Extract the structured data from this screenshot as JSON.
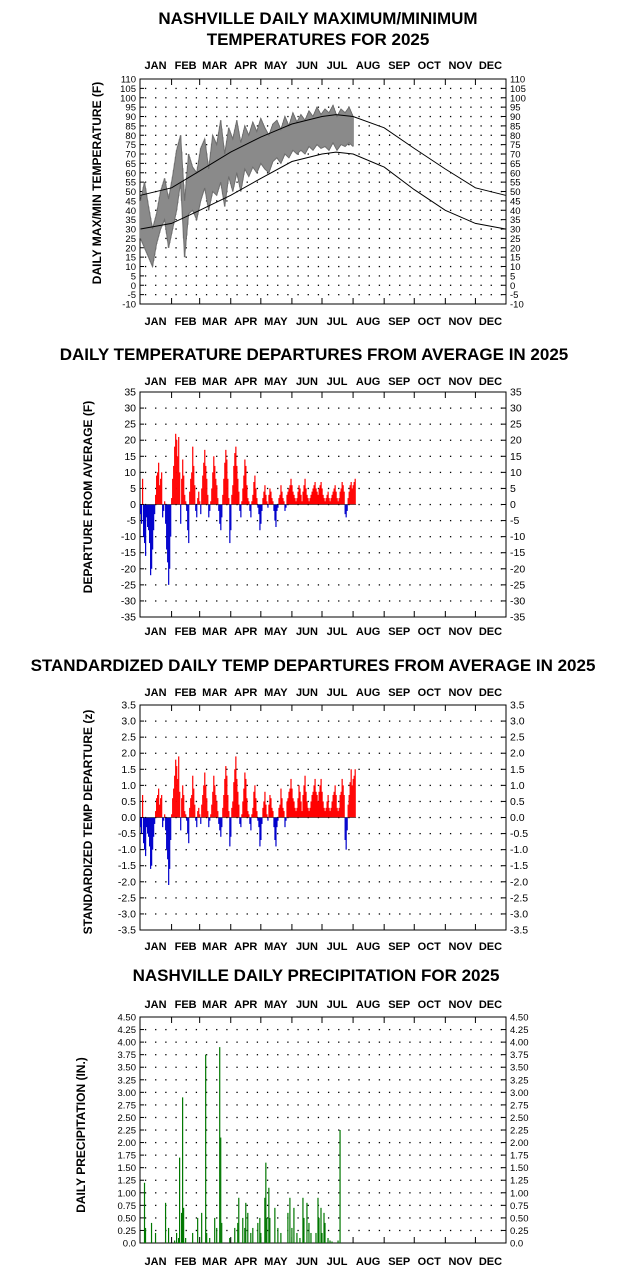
{
  "months": [
    "JAN",
    "FEB",
    "MAR",
    "APR",
    "MAY",
    "JUN",
    "JUL",
    "AUG",
    "SEP",
    "OCT",
    "NOV",
    "DEC"
  ],
  "colors": {
    "observed": "#8a8a8a",
    "normal": "#000000",
    "above": "#ff0000",
    "below": "#0000cc",
    "precip": "#007700"
  },
  "chart_data": [
    {
      "id": "maxmin",
      "type": "line",
      "title_line1": "NASHVILLE DAILY MAXIMUM/MINIMUM",
      "title_line2": "TEMPERATURES FOR 2025",
      "ylabel": "DAILY MAX/MIN TEMPERATURE (F)",
      "ylim": [
        -10,
        110
      ],
      "yticks": [
        -10,
        -5,
        0,
        5,
        10,
        15,
        20,
        25,
        30,
        35,
        40,
        45,
        50,
        55,
        60,
        65,
        70,
        75,
        80,
        85,
        90,
        95,
        100,
        105,
        110
      ],
      "grid": true,
      "series": [
        {
          "name": "",
          "kind": "normal_high",
          "x": [
            1,
            32,
            60,
            91,
            121,
            152,
            182,
            196,
            213,
            244,
            274,
            305,
            335,
            365
          ],
          "values": [
            48,
            52,
            61,
            71,
            79,
            86,
            90,
            91,
            90,
            84,
            73,
            62,
            52,
            48
          ]
        },
        {
          "name": "",
          "kind": "normal_low",
          "x": [
            1,
            32,
            60,
            91,
            121,
            152,
            182,
            196,
            213,
            244,
            274,
            305,
            335,
            365
          ],
          "values": [
            30,
            33,
            40,
            48,
            57,
            66,
            70,
            71,
            70,
            63,
            51,
            40,
            33,
            30
          ]
        },
        {
          "name": "",
          "kind": "observed_high",
          "x": [
            1,
            5,
            9,
            13,
            17,
            21,
            25,
            29,
            33,
            37,
            41,
            45,
            49,
            53,
            57,
            61,
            65,
            69,
            73,
            77,
            81,
            85,
            89,
            93,
            97,
            101,
            105,
            109,
            113,
            117,
            121,
            125,
            129,
            133,
            137,
            141,
            145,
            149,
            153,
            157,
            161,
            165,
            169,
            173,
            177,
            181,
            185,
            189,
            193,
            197,
            201,
            205,
            209,
            213
          ],
          "values": [
            45,
            55,
            42,
            30,
            38,
            50,
            57,
            46,
            58,
            72,
            80,
            45,
            70,
            63,
            60,
            73,
            78,
            62,
            80,
            75,
            88,
            70,
            84,
            78,
            88,
            76,
            85,
            80,
            87,
            82,
            89,
            84,
            80,
            86,
            88,
            83,
            90,
            85,
            92,
            87,
            91,
            88,
            93,
            90,
            95,
            91,
            94,
            92,
            96,
            90,
            94,
            92,
            95,
            90
          ]
        },
        {
          "name": "",
          "kind": "observed_low",
          "x": [
            1,
            5,
            9,
            13,
            17,
            21,
            25,
            29,
            33,
            37,
            41,
            45,
            49,
            53,
            57,
            61,
            65,
            69,
            73,
            77,
            81,
            85,
            89,
            93,
            97,
            101,
            105,
            109,
            113,
            117,
            121,
            125,
            129,
            133,
            137,
            141,
            145,
            149,
            153,
            157,
            161,
            165,
            169,
            173,
            177,
            181,
            185,
            189,
            193,
            197,
            201,
            205,
            209,
            213
          ],
          "values": [
            25,
            20,
            15,
            10,
            22,
            30,
            35,
            20,
            30,
            40,
            55,
            15,
            38,
            40,
            35,
            45,
            52,
            40,
            50,
            48,
            55,
            42,
            58,
            50,
            60,
            50,
            62,
            58,
            63,
            60,
            65,
            62,
            60,
            66,
            68,
            65,
            70,
            68,
            72,
            70,
            72,
            70,
            74,
            72,
            75,
            73,
            74,
            72,
            76,
            72,
            75,
            74,
            76,
            74
          ]
        }
      ]
    },
    {
      "id": "departure",
      "type": "bar",
      "title": "DAILY TEMPERATURE DEPARTURES FROM AVERAGE IN 2025",
      "ylabel": "DEPARTURE FROM AVERAGE (F)",
      "ylim": [
        -35,
        35
      ],
      "yticks": [
        -35,
        -30,
        -25,
        -20,
        -15,
        -10,
        -5,
        0,
        5,
        10,
        15,
        20,
        25,
        30,
        35
      ],
      "grid": true,
      "day_start": 1,
      "values": [
        -3,
        -6,
        8,
        -10,
        -12,
        -16,
        -4,
        -7,
        -8,
        -12,
        -22,
        -20,
        -14,
        -8,
        -3,
        3,
        9,
        10,
        13,
        6,
        8,
        10,
        -4,
        -2,
        1,
        -6,
        -14,
        -18,
        -25,
        -20,
        -10,
        2,
        8,
        12,
        18,
        22,
        20,
        15,
        21,
        10,
        -6,
        8,
        14,
        9,
        3,
        1,
        -2,
        -8,
        -12,
        4,
        8,
        10,
        18,
        12,
        6,
        -2,
        -4,
        2,
        4,
        1,
        -3,
        5,
        9,
        13,
        17,
        12,
        8,
        3,
        -4,
        -2,
        1,
        5,
        10,
        15,
        12,
        8,
        6,
        2,
        -2,
        -6,
        -8,
        -4,
        3,
        8,
        13,
        17,
        14,
        8,
        2,
        -12,
        -8,
        3,
        6,
        12,
        16,
        18,
        12,
        8,
        4,
        -2,
        -4,
        1,
        5,
        9,
        14,
        12,
        6,
        2,
        1,
        -2,
        -4,
        1,
        3,
        7,
        9,
        5,
        2,
        -1,
        -3,
        -8,
        -6,
        -2,
        2,
        4,
        6,
        3,
        1,
        -1,
        3,
        5,
        4,
        2,
        1,
        -2,
        -5,
        -7,
        -2,
        -1,
        2,
        3,
        6,
        4,
        2,
        1,
        -2,
        -1,
        3,
        4,
        5,
        6,
        8,
        6,
        4,
        3,
        2,
        1,
        2,
        4,
        6,
        5,
        3,
        1,
        4,
        6,
        8,
        5,
        3,
        2,
        1,
        2,
        3,
        4,
        5,
        6,
        7,
        5,
        4,
        3,
        5,
        6,
        7,
        5,
        3,
        2,
        1,
        2,
        3,
        4,
        2,
        1,
        2,
        3,
        4,
        5,
        6,
        4,
        2,
        1,
        2,
        4,
        5,
        7,
        6,
        4,
        -3,
        -4,
        -2,
        2,
        4,
        6,
        7,
        5,
        6,
        7,
        8
      ]
    },
    {
      "id": "standardized",
      "type": "bar",
      "title": "STANDARDIZED DAILY TEMP DEPARTURES FROM AVERAGE IN 2025",
      "ylabel": "STANDARDIZED TEMP DEPARTURE (z)",
      "ylim": [
        -3.5,
        3.5
      ],
      "yticks": [
        -3.5,
        -3.0,
        -2.5,
        -2.0,
        -1.5,
        -1.0,
        -0.5,
        0.0,
        0.5,
        1.0,
        1.5,
        2.0,
        2.5,
        3.0,
        3.5
      ],
      "ytick_labels": [
        "-3.5",
        "-3.0",
        "-2.5",
        "-2.0",
        "-1.5",
        "-1.0",
        "-0.5",
        "0.0",
        "0.5",
        "1.0",
        "1.5",
        "2.0",
        "2.5",
        "3.0",
        "3.5"
      ],
      "grid": true,
      "day_start": 1,
      "values": [
        -0.3,
        -0.5,
        0.7,
        -0.8,
        -1.0,
        -1.2,
        -0.3,
        -0.5,
        -0.6,
        -0.9,
        -1.6,
        -1.5,
        -1.0,
        -0.6,
        -0.2,
        0.2,
        0.6,
        0.7,
        0.9,
        0.4,
        0.6,
        0.7,
        -0.3,
        -0.1,
        0.1,
        -0.4,
        -1.0,
        -1.3,
        -2.1,
        -1.6,
        -0.7,
        0.1,
        0.6,
        0.9,
        1.3,
        1.8,
        1.6,
        1.2,
        1.9,
        0.8,
        -0.4,
        0.6,
        1.0,
        0.7,
        0.2,
        0.1,
        -0.1,
        -0.5,
        -0.8,
        0.3,
        0.6,
        0.7,
        1.3,
        0.9,
        0.4,
        -0.1,
        -0.3,
        0.2,
        0.3,
        0.1,
        -0.2,
        0.4,
        0.7,
        1.0,
        1.4,
        1.0,
        0.6,
        0.2,
        -0.3,
        -0.1,
        0.1,
        0.4,
        0.8,
        1.3,
        1.0,
        0.7,
        0.5,
        0.2,
        -0.2,
        -0.4,
        -0.6,
        -0.3,
        0.3,
        0.7,
        1.2,
        1.6,
        1.3,
        0.7,
        0.2,
        -0.9,
        -0.6,
        0.3,
        0.5,
        1.1,
        1.5,
        1.9,
        1.2,
        0.8,
        0.4,
        -0.2,
        -0.3,
        0.1,
        0.5,
        0.9,
        1.4,
        1.2,
        0.6,
        0.2,
        0.1,
        -0.2,
        -0.4,
        0.1,
        0.3,
        0.8,
        1.0,
        0.6,
        0.2,
        -0.1,
        -0.3,
        -0.9,
        -0.7,
        -0.2,
        0.3,
        0.5,
        0.8,
        0.4,
        0.1,
        -0.1,
        0.4,
        0.7,
        0.6,
        0.3,
        0.2,
        -0.3,
        -0.7,
        -0.9,
        -0.3,
        -0.1,
        0.3,
        0.4,
        0.9,
        0.6,
        0.3,
        0.2,
        -0.3,
        -0.1,
        0.5,
        0.6,
        0.8,
        0.9,
        1.2,
        0.9,
        0.6,
        0.5,
        0.3,
        0.2,
        0.3,
        0.6,
        1.0,
        0.8,
        0.5,
        0.2,
        0.7,
        1.0,
        1.3,
        0.8,
        0.5,
        0.3,
        0.2,
        0.3,
        0.5,
        0.7,
        0.8,
        1.0,
        1.2,
        0.8,
        0.7,
        0.5,
        0.8,
        1.0,
        1.2,
        0.8,
        0.5,
        0.3,
        0.2,
        0.3,
        0.5,
        0.7,
        0.3,
        0.2,
        0.3,
        0.5,
        0.7,
        0.8,
        1.0,
        0.7,
        0.3,
        0.2,
        0.3,
        0.7,
        0.8,
        1.2,
        1.0,
        0.7,
        -0.7,
        -1.0,
        -0.4,
        0.4,
        0.7,
        1.1,
        1.5,
        1.0,
        1.2,
        1.3,
        1.5
      ]
    },
    {
      "id": "precip",
      "type": "bar",
      "title": "NASHVILLE DAILY PRECIPITATION FOR 2025",
      "ylabel": "DAILY PRECIPITATION (IN.)",
      "ylim": [
        0,
        4.5
      ],
      "yticks": [
        0,
        0.25,
        0.5,
        0.75,
        1.0,
        1.25,
        1.5,
        1.75,
        2.0,
        2.25,
        2.5,
        2.75,
        3.0,
        3.25,
        3.5,
        3.75,
        4.0,
        4.25,
        4.5
      ],
      "ytick_labels": [
        "0.0",
        "0.25",
        "0.50",
        "0.75",
        "1.00",
        "1.25",
        "1.50",
        "1.75",
        "2.00",
        "2.25",
        "2.50",
        "2.75",
        "3.00",
        "3.25",
        "3.50",
        "3.75",
        "4.00",
        "4.25",
        "4.50"
      ],
      "grid": true,
      "bars": [
        [
          5,
          1.2
        ],
        [
          6,
          0.3
        ],
        [
          12,
          0.4
        ],
        [
          16,
          0.2
        ],
        [
          26,
          0.8
        ],
        [
          29,
          0.3
        ],
        [
          35,
          0.05
        ],
        [
          37,
          0.2
        ],
        [
          39,
          0.1
        ],
        [
          40,
          1.7
        ],
        [
          42,
          0.6
        ],
        [
          43,
          2.9
        ],
        [
          44,
          0.7
        ],
        [
          46,
          0.1
        ],
        [
          53,
          0.2
        ],
        [
          58,
          0.5
        ],
        [
          62,
          0.6
        ],
        [
          66,
          3.75
        ],
        [
          67,
          0.2
        ],
        [
          70,
          0.1
        ],
        [
          75,
          0.5
        ],
        [
          77,
          0.3
        ],
        [
          80,
          3.9
        ],
        [
          81,
          2.1
        ],
        [
          82,
          0.4
        ],
        [
          90,
          0.1
        ],
        [
          95,
          0.3
        ],
        [
          98,
          0.4
        ],
        [
          99,
          0.9
        ],
        [
          103,
          0.5
        ],
        [
          105,
          0.3
        ],
        [
          106,
          0.8
        ],
        [
          108,
          0.6
        ],
        [
          111,
          0.2
        ],
        [
          113,
          0.3
        ],
        [
          118,
          0.4
        ],
        [
          120,
          0.5
        ],
        [
          121,
          0.2
        ],
        [
          125,
          0.9
        ],
        [
          126,
          1.6
        ],
        [
          127,
          0.5
        ],
        [
          129,
          1.1
        ],
        [
          130,
          0.5
        ],
        [
          135,
          0.7
        ],
        [
          138,
          0.3
        ],
        [
          141,
          0.2
        ],
        [
          148,
          0.6
        ],
        [
          150,
          0.9
        ],
        [
          152,
          0.3
        ],
        [
          154,
          0.7
        ],
        [
          157,
          0.2
        ],
        [
          160,
          0.1
        ],
        [
          163,
          0.9
        ],
        [
          164,
          0.5
        ],
        [
          167,
          0.8
        ],
        [
          169,
          0.4
        ],
        [
          171,
          0.2
        ],
        [
          176,
          0.2
        ],
        [
          178,
          0.9
        ],
        [
          179,
          0.5
        ],
        [
          181,
          0.7
        ],
        [
          182,
          0.2
        ],
        [
          184,
          0.6
        ],
        [
          185,
          0.4
        ],
        [
          188,
          0.1
        ],
        [
          190,
          0.05
        ],
        [
          192,
          0.03
        ],
        [
          198,
          0.05
        ],
        [
          200,
          2.25
        ]
      ]
    }
  ]
}
